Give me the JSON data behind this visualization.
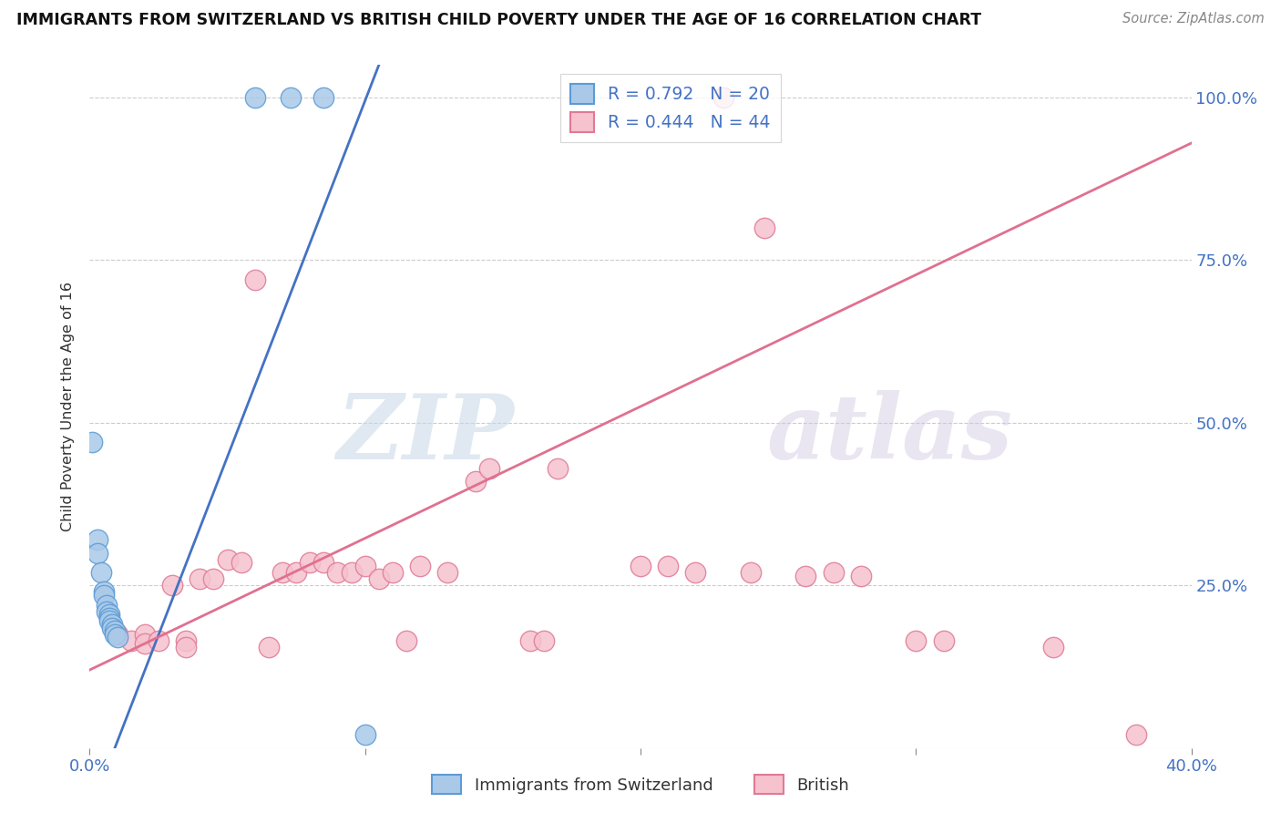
{
  "title": "IMMIGRANTS FROM SWITZERLAND VS BRITISH CHILD POVERTY UNDER THE AGE OF 16 CORRELATION CHART",
  "source": "Source: ZipAtlas.com",
  "ylabel": "Child Poverty Under the Age of 16",
  "y_ticks": [
    0.0,
    0.25,
    0.5,
    0.75,
    1.0
  ],
  "y_tick_labels": [
    "",
    "25.0%",
    "50.0%",
    "75.0%",
    "100.0%"
  ],
  "xlim": [
    0.0,
    0.4
  ],
  "ylim": [
    0.0,
    1.05
  ],
  "legend_line1": "R = 0.792   N = 20",
  "legend_line2": "R = 0.444   N = 44",
  "legend_label_blue": "Immigrants from Switzerland",
  "legend_label_pink": "British",
  "blue_fill": "#aac9e8",
  "blue_edge": "#5b9bd5",
  "pink_fill": "#f5c2ce",
  "pink_edge": "#e07a96",
  "blue_line_color": "#4472c4",
  "pink_line_color": "#e07090",
  "blue_scatter": [
    [
      0.001,
      0.47
    ],
    [
      0.003,
      0.32
    ],
    [
      0.003,
      0.3
    ],
    [
      0.004,
      0.27
    ],
    [
      0.005,
      0.24
    ],
    [
      0.005,
      0.235
    ],
    [
      0.006,
      0.22
    ],
    [
      0.006,
      0.21
    ],
    [
      0.007,
      0.205
    ],
    [
      0.007,
      0.2
    ],
    [
      0.007,
      0.195
    ],
    [
      0.008,
      0.19
    ],
    [
      0.008,
      0.185
    ],
    [
      0.009,
      0.18
    ],
    [
      0.009,
      0.175
    ],
    [
      0.01,
      0.17
    ],
    [
      0.06,
      1.0
    ],
    [
      0.073,
      1.0
    ],
    [
      0.085,
      1.0
    ],
    [
      0.1,
      0.02
    ]
  ],
  "pink_scatter": [
    [
      0.01,
      0.175
    ],
    [
      0.015,
      0.165
    ],
    [
      0.02,
      0.175
    ],
    [
      0.02,
      0.16
    ],
    [
      0.025,
      0.165
    ],
    [
      0.03,
      0.25
    ],
    [
      0.035,
      0.165
    ],
    [
      0.035,
      0.155
    ],
    [
      0.04,
      0.26
    ],
    [
      0.045,
      0.26
    ],
    [
      0.05,
      0.29
    ],
    [
      0.055,
      0.285
    ],
    [
      0.065,
      0.155
    ],
    [
      0.07,
      0.27
    ],
    [
      0.075,
      0.27
    ],
    [
      0.08,
      0.285
    ],
    [
      0.085,
      0.285
    ],
    [
      0.09,
      0.27
    ],
    [
      0.095,
      0.27
    ],
    [
      0.1,
      0.28
    ],
    [
      0.105,
      0.26
    ],
    [
      0.11,
      0.27
    ],
    [
      0.115,
      0.165
    ],
    [
      0.12,
      0.28
    ],
    [
      0.13,
      0.27
    ],
    [
      0.14,
      0.41
    ],
    [
      0.145,
      0.43
    ],
    [
      0.16,
      0.165
    ],
    [
      0.165,
      0.165
    ],
    [
      0.17,
      0.43
    ],
    [
      0.2,
      0.28
    ],
    [
      0.21,
      0.28
    ],
    [
      0.22,
      0.27
    ],
    [
      0.23,
      1.0
    ],
    [
      0.24,
      0.27
    ],
    [
      0.245,
      0.8
    ],
    [
      0.26,
      0.265
    ],
    [
      0.27,
      0.27
    ],
    [
      0.28,
      0.265
    ],
    [
      0.3,
      0.165
    ],
    [
      0.31,
      0.165
    ],
    [
      0.35,
      0.155
    ],
    [
      0.38,
      0.02
    ],
    [
      0.06,
      0.72
    ]
  ],
  "blue_line": [
    [
      0.0,
      -0.1
    ],
    [
      0.105,
      1.05
    ]
  ],
  "pink_line": [
    [
      0.0,
      0.12
    ],
    [
      0.4,
      0.93
    ]
  ],
  "watermark_zip": "ZIP",
  "watermark_atlas": "atlas",
  "background_color": "#ffffff"
}
